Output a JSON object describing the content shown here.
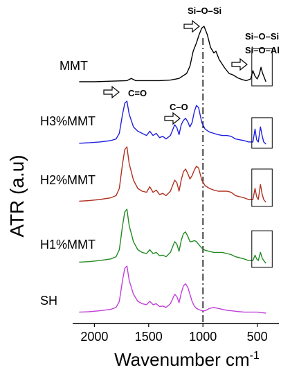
{
  "chart_data": {
    "type": "line",
    "xlabel": "Wavenumber cm",
    "xlabel_superscript": "-1",
    "ylabel": "ATR (a.u)",
    "x_reversed": true,
    "xlim": [
      2200,
      300
    ],
    "xticks": [
      2000,
      1500,
      1000,
      500
    ],
    "tick_labels": [
      "2000",
      "1500",
      "1000",
      "500"
    ],
    "reference_line_x": 1000,
    "series": [
      {
        "name": "MMT",
        "color": "#000000",
        "offset": 4,
        "x": [
          2140,
          2000,
          1850,
          1700,
          1660,
          1620,
          1500,
          1400,
          1300,
          1220,
          1150,
          1120,
          1090,
          1060,
          1035,
          1010,
          990,
          960,
          930,
          900,
          880,
          850,
          800,
          760,
          720,
          680,
          640,
          600,
          560,
          540,
          520,
          500,
          480,
          465,
          450,
          420
        ],
        "values": [
          0.0,
          0.0,
          0.01,
          0.02,
          0.06,
          0.02,
          0.02,
          0.02,
          0.03,
          0.06,
          0.15,
          0.28,
          0.55,
          0.7,
          0.85,
          0.97,
          1.0,
          0.85,
          0.62,
          0.52,
          0.55,
          0.4,
          0.25,
          0.15,
          0.12,
          0.07,
          0.04,
          0.02,
          0.05,
          0.2,
          0.1,
          0.05,
          0.14,
          0.26,
          0.15,
          0.0
        ]
      },
      {
        "name": "H3%MMT",
        "color": "#2020e0",
        "offset": 3,
        "x": [
          2140,
          2050,
          1950,
          1850,
          1800,
          1770,
          1740,
          1720,
          1700,
          1680,
          1640,
          1600,
          1560,
          1520,
          1490,
          1460,
          1430,
          1400,
          1370,
          1340,
          1300,
          1260,
          1240,
          1220,
          1200,
          1180,
          1160,
          1140,
          1120,
          1100,
          1080,
          1060,
          1040,
          1010,
          980,
          940,
          900,
          860,
          820,
          780,
          740,
          700,
          660,
          620,
          580,
          540,
          520,
          505,
          490,
          470,
          455,
          440,
          420
        ],
        "values": [
          0.02,
          0.03,
          0.05,
          0.08,
          0.12,
          0.25,
          0.7,
          0.95,
          1.0,
          0.7,
          0.4,
          0.3,
          0.25,
          0.2,
          0.3,
          0.2,
          0.25,
          0.15,
          0.18,
          0.12,
          0.2,
          0.45,
          0.38,
          0.22,
          0.45,
          0.55,
          0.6,
          0.52,
          0.4,
          0.5,
          0.75,
          0.9,
          0.85,
          0.5,
          0.35,
          0.28,
          0.25,
          0.22,
          0.2,
          0.2,
          0.18,
          0.12,
          0.1,
          0.08,
          0.05,
          0.05,
          0.35,
          0.1,
          0.05,
          0.4,
          0.2,
          0.05,
          0.0
        ]
      },
      {
        "name": "H2%MMT",
        "color": "#b03020",
        "offset": 2,
        "x": [
          2140,
          2050,
          1950,
          1850,
          1800,
          1770,
          1740,
          1720,
          1700,
          1680,
          1640,
          1600,
          1560,
          1520,
          1490,
          1460,
          1430,
          1400,
          1370,
          1340,
          1300,
          1260,
          1240,
          1220,
          1200,
          1180,
          1160,
          1140,
          1120,
          1100,
          1080,
          1060,
          1040,
          1010,
          980,
          940,
          900,
          860,
          820,
          780,
          740,
          700,
          660,
          620,
          580,
          540,
          520,
          505,
          490,
          470,
          455,
          440,
          420
        ],
        "values": [
          0.02,
          0.03,
          0.05,
          0.08,
          0.12,
          0.25,
          0.7,
          0.95,
          1.0,
          0.7,
          0.4,
          0.25,
          0.2,
          0.18,
          0.28,
          0.18,
          0.22,
          0.14,
          0.16,
          0.12,
          0.2,
          0.4,
          0.35,
          0.2,
          0.4,
          0.55,
          0.6,
          0.52,
          0.42,
          0.48,
          0.58,
          0.65,
          0.62,
          0.4,
          0.3,
          0.25,
          0.22,
          0.2,
          0.2,
          0.2,
          0.18,
          0.12,
          0.1,
          0.08,
          0.05,
          0.05,
          0.25,
          0.1,
          0.05,
          0.32,
          0.15,
          0.05,
          0.0
        ]
      },
      {
        "name": "H1%MMT",
        "color": "#228b22",
        "offset": 1,
        "x": [
          2140,
          2050,
          1950,
          1850,
          1800,
          1770,
          1740,
          1720,
          1700,
          1680,
          1640,
          1600,
          1560,
          1520,
          1490,
          1460,
          1430,
          1400,
          1370,
          1340,
          1300,
          1260,
          1240,
          1220,
          1200,
          1180,
          1160,
          1140,
          1120,
          1100,
          1080,
          1060,
          1040,
          1010,
          980,
          940,
          900,
          860,
          820,
          780,
          740,
          700,
          660,
          620,
          580,
          540,
          520,
          505,
          490,
          470,
          455,
          440,
          420
        ],
        "values": [
          0.02,
          0.03,
          0.05,
          0.08,
          0.12,
          0.25,
          0.7,
          0.95,
          1.0,
          0.7,
          0.4,
          0.25,
          0.2,
          0.18,
          0.25,
          0.18,
          0.2,
          0.14,
          0.15,
          0.12,
          0.2,
          0.4,
          0.35,
          0.22,
          0.42,
          0.55,
          0.58,
          0.5,
          0.4,
          0.4,
          0.42,
          0.4,
          0.35,
          0.28,
          0.24,
          0.22,
          0.2,
          0.2,
          0.2,
          0.18,
          0.16,
          0.12,
          0.1,
          0.08,
          0.05,
          0.05,
          0.15,
          0.08,
          0.05,
          0.2,
          0.1,
          0.05,
          0.0
        ]
      },
      {
        "name": "SH",
        "color": "#c040d8",
        "offset": 0,
        "x": [
          2140,
          2050,
          1950,
          1850,
          1800,
          1770,
          1740,
          1720,
          1700,
          1680,
          1640,
          1600,
          1560,
          1520,
          1490,
          1460,
          1430,
          1400,
          1370,
          1340,
          1300,
          1260,
          1240,
          1220,
          1200,
          1180,
          1160,
          1140,
          1120,
          1100,
          1080,
          1060,
          1040,
          1010,
          980,
          940,
          900,
          860,
          820,
          780,
          740,
          700,
          660,
          620,
          580,
          540,
          500,
          460,
          420
        ],
        "values": [
          0.02,
          0.03,
          0.05,
          0.08,
          0.12,
          0.25,
          0.7,
          0.95,
          1.0,
          0.7,
          0.4,
          0.25,
          0.2,
          0.18,
          0.25,
          0.18,
          0.2,
          0.14,
          0.15,
          0.12,
          0.2,
          0.4,
          0.35,
          0.22,
          0.42,
          0.58,
          0.62,
          0.55,
          0.4,
          0.25,
          0.15,
          0.1,
          0.08,
          0.05,
          0.05,
          0.1,
          0.12,
          0.1,
          0.08,
          0.06,
          0.05,
          0.04,
          0.03,
          0.02,
          0.02,
          0.02,
          0.02,
          0.01,
          0.0
        ]
      }
    ],
    "annotations": [
      {
        "text": "Si–O–Si",
        "x": 1000
      },
      {
        "text": "C=O",
        "x": 1720
      },
      {
        "text": "C–O",
        "x": 1180
      },
      {
        "text": "Si–O–Si",
        "x": 480
      },
      {
        "text": "Si–O–Al",
        "x": 480
      }
    ],
    "boxed_series": [
      "MMT",
      "H3%MMT",
      "H2%MMT",
      "H1%MMT"
    ],
    "boxed_range": [
      550,
      400
    ],
    "grid": false,
    "legend": "none"
  }
}
